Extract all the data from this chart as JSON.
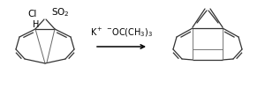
{
  "background_color": "#ffffff",
  "fig_width": 3.0,
  "fig_height": 1.0,
  "dpi": 100,
  "reagent_text": "K$^+$ $^{-}$OC(CH$_3$)$_3$",
  "reagent_fontsize": 7,
  "cl_label": "Cl",
  "cl_color": "#000000",
  "h_label": "H",
  "so2_label": "SO$_2$",
  "line_color": "#333333",
  "line_width": 0.9
}
